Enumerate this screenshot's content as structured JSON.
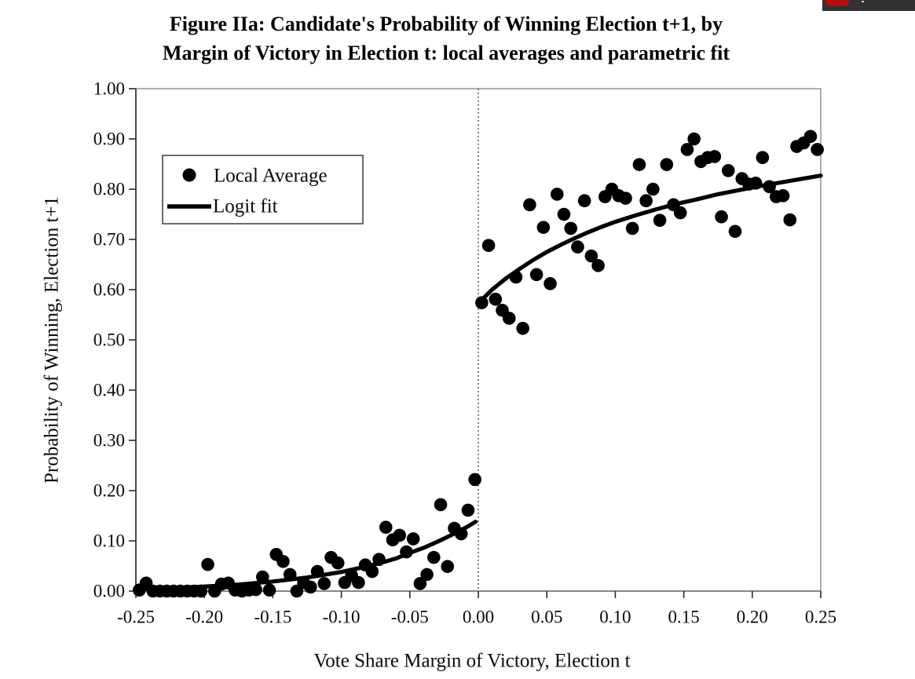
{
  "title": {
    "line1": "Figure IIa: Candidate's Probability of Winning Election t+1, by",
    "line2": "Margin of Victory in Election t: local averages and parametric fit"
  },
  "browser_chrome": {
    "strip_color": "#323232",
    "red_button_color": "#b40f0f"
  },
  "chart_data": {
    "type": "scatter",
    "title": "Figure IIa: Candidate's Probability of Winning Election t+1, by Margin of Victory in Election t: local averages and parametric fit",
    "xlabel": "Vote Share Margin of Victory, Election t",
    "ylabel": "Probability of Winning, Election t+1",
    "xlim": [
      -0.25,
      0.25
    ],
    "ylim": [
      0.0,
      1.0
    ],
    "grid": false,
    "x_ticks": [
      -0.25,
      -0.2,
      -0.15,
      -0.1,
      -0.05,
      0.0,
      0.05,
      0.1,
      0.15,
      0.2,
      0.25
    ],
    "x_tick_labels": [
      "-0.25",
      "-0.20",
      "-0.15",
      "-0.10",
      "-0.05",
      "0.00",
      "0.05",
      "0.10",
      "0.15",
      "0.20",
      "0.25"
    ],
    "y_ticks": [
      0.0,
      0.1,
      0.2,
      0.3,
      0.4,
      0.5,
      0.6,
      0.7,
      0.8,
      0.9,
      1.0
    ],
    "y_tick_labels": [
      "0.00",
      "0.10",
      "0.20",
      "0.30",
      "0.40",
      "0.50",
      "0.60",
      "0.70",
      "0.80",
      "0.90",
      "1.00"
    ],
    "discontinuity_line_x": 0.0,
    "legend_position": "upper-left-inside",
    "legend": [
      {
        "label": "Local Average",
        "marker": "dot"
      },
      {
        "label": "Logit fit",
        "marker": "line"
      }
    ],
    "series": [
      {
        "name": "Local Average",
        "type": "scatter",
        "color": "#000000",
        "points": [
          [
            -0.2475,
            0.002
          ],
          [
            -0.2425,
            0.016
          ],
          [
            -0.2375,
            0.0
          ],
          [
            -0.2325,
            0.0
          ],
          [
            -0.2275,
            0.0
          ],
          [
            -0.2225,
            0.0
          ],
          [
            -0.2175,
            0.0
          ],
          [
            -0.2125,
            0.0
          ],
          [
            -0.2075,
            0.0
          ],
          [
            -0.2025,
            0.0
          ],
          [
            -0.1975,
            0.053
          ],
          [
            -0.1925,
            0.0
          ],
          [
            -0.1875,
            0.014
          ],
          [
            -0.1825,
            0.016
          ],
          [
            -0.1775,
            0.002
          ],
          [
            -0.1725,
            0.0
          ],
          [
            -0.1675,
            0.002
          ],
          [
            -0.1625,
            0.003
          ],
          [
            -0.1575,
            0.028
          ],
          [
            -0.1525,
            0.002
          ],
          [
            -0.1475,
            0.073
          ],
          [
            -0.1425,
            0.059
          ],
          [
            -0.1375,
            0.033
          ],
          [
            -0.1325,
            0.0
          ],
          [
            -0.1275,
            0.017
          ],
          [
            -0.1225,
            0.008
          ],
          [
            -0.1175,
            0.039
          ],
          [
            -0.1125,
            0.015
          ],
          [
            -0.1075,
            0.067
          ],
          [
            -0.1025,
            0.056
          ],
          [
            -0.0975,
            0.017
          ],
          [
            -0.0925,
            0.031
          ],
          [
            -0.0875,
            0.017
          ],
          [
            -0.0825,
            0.052
          ],
          [
            -0.0775,
            0.039
          ],
          [
            -0.0725,
            0.063
          ],
          [
            -0.0675,
            0.127
          ],
          [
            -0.0625,
            0.102
          ],
          [
            -0.0575,
            0.111
          ],
          [
            -0.0525,
            0.078
          ],
          [
            -0.0475,
            0.104
          ],
          [
            -0.0425,
            0.015
          ],
          [
            -0.0375,
            0.033
          ],
          [
            -0.0325,
            0.067
          ],
          [
            -0.0275,
            0.172
          ],
          [
            -0.0225,
            0.049
          ],
          [
            -0.0175,
            0.125
          ],
          [
            -0.0125,
            0.114
          ],
          [
            -0.0075,
            0.161
          ],
          [
            -0.0025,
            0.222
          ],
          [
            0.0025,
            0.574
          ],
          [
            0.0075,
            0.688
          ],
          [
            0.0125,
            0.581
          ],
          [
            0.0175,
            0.559
          ],
          [
            0.0225,
            0.543
          ],
          [
            0.0275,
            0.625
          ],
          [
            0.0325,
            0.523
          ],
          [
            0.0375,
            0.769
          ],
          [
            0.0425,
            0.63
          ],
          [
            0.0475,
            0.724
          ],
          [
            0.0525,
            0.612
          ],
          [
            0.0575,
            0.79
          ],
          [
            0.0625,
            0.75
          ],
          [
            0.0675,
            0.722
          ],
          [
            0.0725,
            0.685
          ],
          [
            0.0775,
            0.777
          ],
          [
            0.0825,
            0.667
          ],
          [
            0.0875,
            0.648
          ],
          [
            0.0925,
            0.785
          ],
          [
            0.0975,
            0.8
          ],
          [
            0.1025,
            0.787
          ],
          [
            0.1075,
            0.782
          ],
          [
            0.1125,
            0.722
          ],
          [
            0.1175,
            0.849
          ],
          [
            0.1225,
            0.777
          ],
          [
            0.1275,
            0.8
          ],
          [
            0.1325,
            0.738
          ],
          [
            0.1375,
            0.849
          ],
          [
            0.1425,
            0.769
          ],
          [
            0.1475,
            0.753
          ],
          [
            0.1525,
            0.879
          ],
          [
            0.1575,
            0.9
          ],
          [
            0.1625,
            0.855
          ],
          [
            0.1675,
            0.863
          ],
          [
            0.1725,
            0.865
          ],
          [
            0.1775,
            0.745
          ],
          [
            0.1825,
            0.837
          ],
          [
            0.1875,
            0.716
          ],
          [
            0.1925,
            0.821
          ],
          [
            0.1975,
            0.81
          ],
          [
            0.2025,
            0.812
          ],
          [
            0.2075,
            0.863
          ],
          [
            0.2125,
            0.805
          ],
          [
            0.2175,
            0.785
          ],
          [
            0.2225,
            0.787
          ],
          [
            0.2275,
            0.739
          ],
          [
            0.2325,
            0.885
          ],
          [
            0.2375,
            0.892
          ],
          [
            0.2425,
            0.905
          ],
          [
            0.2475,
            0.879
          ]
        ]
      },
      {
        "name": "Logit fit",
        "type": "line",
        "color": "#000000",
        "segments": [
          {
            "points": [
              [
                -0.25,
                0.004
              ],
              [
                -0.225,
                0.006
              ],
              [
                -0.2,
                0.009
              ],
              [
                -0.175,
                0.013
              ],
              [
                -0.15,
                0.019
              ],
              [
                -0.125,
                0.027
              ],
              [
                -0.1,
                0.038
              ],
              [
                -0.085,
                0.047
              ],
              [
                -0.07,
                0.057
              ],
              [
                -0.06,
                0.065
              ],
              [
                -0.05,
                0.076
              ],
              [
                -0.04,
                0.086
              ],
              [
                -0.03,
                0.098
              ],
              [
                -0.02,
                0.111
              ],
              [
                -0.01,
                0.125
              ],
              [
                -0.002,
                0.138
              ]
            ]
          },
          {
            "points": [
              [
                0.002,
                0.578
              ],
              [
                0.01,
                0.6
              ],
              [
                0.02,
                0.622
              ],
              [
                0.03,
                0.641
              ],
              [
                0.04,
                0.659
              ],
              [
                0.05,
                0.675
              ],
              [
                0.06,
                0.689
              ],
              [
                0.07,
                0.702
              ],
              [
                0.08,
                0.714
              ],
              [
                0.09,
                0.725
              ],
              [
                0.1,
                0.735
              ],
              [
                0.115,
                0.748
              ],
              [
                0.13,
                0.76
              ],
              [
                0.145,
                0.771
              ],
              [
                0.16,
                0.78
              ],
              [
                0.175,
                0.79
              ],
              [
                0.19,
                0.798
              ],
              [
                0.205,
                0.806
              ],
              [
                0.22,
                0.813
              ],
              [
                0.235,
                0.82
              ],
              [
                0.25,
                0.827
              ]
            ]
          }
        ]
      }
    ]
  }
}
